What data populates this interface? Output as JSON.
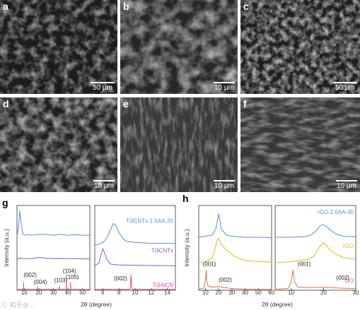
{
  "sem_panels": [
    {
      "label": "a",
      "scale": "50 μm"
    },
    {
      "label": "b",
      "scale": "10 μm"
    },
    {
      "label": "c",
      "scale": "50 μm"
    },
    {
      "label": "d",
      "scale": "10 μm"
    },
    {
      "label": "e",
      "scale": "10 μm"
    },
    {
      "label": "f",
      "scale": "10 μm"
    }
  ],
  "colors": {
    "blue": "#5b8fd6",
    "purple": "#7d5bc8",
    "pink": "#d84c94",
    "gold": "#e0b824",
    "orange": "#e0704b",
    "axis": "#333333"
  },
  "figure_g": {
    "label": "g"
  },
  "figure_h": {
    "label": "h"
  },
  "watermark": "Ⓒ 知乎@…",
  "chart_data": [
    {
      "panel": "g",
      "type": "line",
      "xlabel": "2θ (degree)",
      "ylabel": "Intensity (a.u.)",
      "subplots": [
        {
          "xlim": [
            5,
            55
          ],
          "xticks": [
            "10",
            "20",
            "30",
            "40",
            "50"
          ],
          "series": [
            {
              "x": [
                5,
                6,
                7,
                8,
                9,
                10,
                12,
                15,
                20,
                25,
                30,
                35,
                40,
                45,
                50,
                55
              ],
              "y": [
                3.0,
                3.5,
                4.4,
                3.6,
                3.15,
                3.05,
                3.1,
                3.05,
                3.1,
                3.1,
                3.05,
                3.1,
                3.05,
                3.08,
                3.05,
                3.04
              ]
            },
            {
              "x": [
                5,
                6,
                7,
                8,
                9,
                10,
                15,
                20,
                25,
                30,
                35,
                40,
                45,
                50,
                55
              ],
              "y": [
                1.7,
                1.75,
                1.8,
                1.78,
                1.76,
                1.75,
                1.75,
                1.82,
                1.78,
                1.75,
                1.76,
                1.75,
                1.75,
                1.74,
                1.74
              ]
            },
            {
              "x": [
                5,
                9.4,
                9.5,
                9.6,
                10,
                19,
                19.1,
                19.2,
                20,
                34,
                34.1,
                34.2,
                35,
                38.9,
                39,
                39.1,
                40,
                41.7,
                41.8,
                41.9,
                45,
                55
              ],
              "y": [
                0.05,
                0.05,
                0.45,
                0.05,
                0.05,
                0.05,
                0.2,
                0.05,
                0.05,
                0.05,
                0.25,
                0.05,
                0.05,
                0.05,
                0.55,
                0.05,
                0.05,
                0.05,
                0.45,
                0.05,
                0.05,
                0.05
              ]
            }
          ],
          "annotations": [
            "(002)",
            "(004)",
            "(103)",
            "(104)",
            "(105)"
          ]
        },
        {
          "xlim": [
            5,
            15
          ],
          "xticks": [
            "6",
            "8",
            "10",
            "12",
            "14"
          ],
          "series": [
            {
              "name": "Ti3CNTx-1.5AA-20",
              "x": [
                5,
                5.5,
                6,
                6.5,
                7,
                7.3,
                7.6,
                8,
                8.5,
                9,
                10,
                12,
                15
              ],
              "y": [
                2.5,
                2.55,
                2.65,
                2.9,
                3.4,
                3.7,
                3.6,
                3.2,
                2.85,
                2.7,
                2.65,
                2.6,
                2.6
              ]
            },
            {
              "name": "Ti3CNTx",
              "x": [
                5,
                5.5,
                5.8,
                6,
                6.2,
                6.5,
                7,
                8,
                10,
                12,
                15
              ],
              "y": [
                1.35,
                1.5,
                2.0,
                2.3,
                2.1,
                1.7,
                1.45,
                1.4,
                1.38,
                1.37,
                1.36
              ]
            },
            {
              "name": "Ti3AlCN",
              "x": [
                5,
                9.3,
                9.4,
                9.5,
                9.6,
                9.7,
                15
              ],
              "y": [
                0.05,
                0.05,
                0.12,
                0.85,
                0.12,
                0.05,
                0.05
              ]
            }
          ],
          "annotations": [
            "(002)"
          ]
        }
      ]
    },
    {
      "panel": "h",
      "type": "line",
      "xlabel": "2θ (degree)",
      "ylabel": "Intensity (a.u.)",
      "subplots": [
        {
          "xlim": [
            5,
            60
          ],
          "xticks": [
            "10",
            "20",
            "30",
            "40",
            "50",
            "60"
          ],
          "series": [
            {
              "x": [
                5,
                10,
                15,
                18,
                20,
                21,
                22,
                24,
                26,
                30,
                40,
                50,
                60
              ],
              "y": [
                2.5,
                2.55,
                2.6,
                2.9,
                3.6,
                3.3,
                2.9,
                2.75,
                2.6,
                2.55,
                2.5,
                2.5,
                2.48
              ]
            },
            {
              "x": [
                5,
                10,
                15,
                17,
                19,
                20,
                21,
                23,
                25,
                28,
                32,
                40,
                50,
                60
              ],
              "y": [
                1.3,
                1.35,
                1.5,
                1.9,
                2.35,
                2.45,
                2.3,
                2.1,
                1.95,
                1.8,
                1.6,
                1.4,
                1.35,
                1.33
              ]
            },
            {
              "x": [
                5,
                9,
                10,
                10.6,
                11,
                12,
                14,
                20,
                25,
                30,
                40,
                50,
                60
              ],
              "y": [
                0.05,
                0.1,
                0.5,
                0.95,
                0.5,
                0.2,
                0.15,
                0.17,
                0.12,
                0.08,
                0.05,
                0.04,
                0.04
              ]
            }
          ],
          "annotations": [
            "(001)",
            "(002)"
          ]
        },
        {
          "xlim": [
            5,
            30
          ],
          "xticks": [
            "10",
            "20",
            "30"
          ],
          "series": [
            {
              "name": "rGO-2.0AA-30",
              "x": [
                5,
                10,
                14,
                16,
                18,
                19,
                20,
                21,
                22,
                24,
                26,
                30
              ],
              "y": [
                2.5,
                2.5,
                2.52,
                2.6,
                2.85,
                3.05,
                3.1,
                3.0,
                2.85,
                2.65,
                2.55,
                2.52
              ]
            },
            {
              "name": "rGO",
              "x": [
                5,
                10,
                15,
                17,
                18,
                19,
                20,
                21,
                22,
                24,
                26,
                30
              ],
              "y": [
                1.3,
                1.35,
                1.45,
                1.6,
                1.85,
                2.1,
                2.25,
                2.1,
                1.9,
                1.7,
                1.55,
                1.45
              ]
            },
            {
              "name": "GO",
              "x": [
                5,
                9,
                10,
                10.5,
                11,
                12,
                14,
                20,
                25,
                30
              ],
              "y": [
                0.05,
                0.08,
                0.4,
                0.95,
                0.4,
                0.15,
                0.12,
                0.14,
                0.1,
                0.08
              ]
            }
          ],
          "annotations": [
            "(001)",
            "(002)"
          ]
        }
      ]
    }
  ]
}
